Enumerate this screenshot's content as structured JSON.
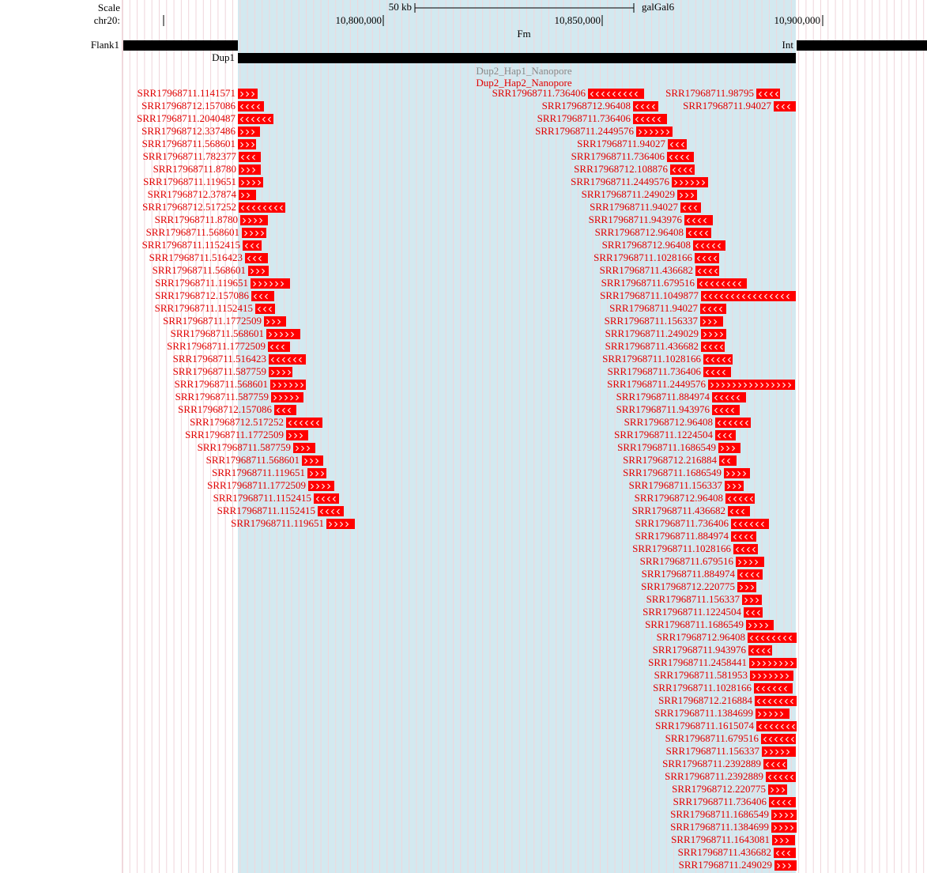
{
  "header": {
    "scale_label": "Scale",
    "chrom_label": "chr20:",
    "scale_bar": "50 kb",
    "assembly": "galGal6",
    "ticks": [
      "10,800,000",
      "10,850,000",
      "10,900,000"
    ]
  },
  "tracks": {
    "fm": "Fm",
    "flank1": "Flank1",
    "int": "Int",
    "dup1": "Dup1",
    "hap1": "Dup2_Hap1_Nanopore",
    "hap2": "Dup2_Hap2_Nanopore"
  },
  "reads": [
    "SRR17968711.1141571",
    "SRR17968712.157086",
    "SRR17968711.2040487",
    "SRR17968712.337486",
    "SRR17968711.568601",
    "SRR17968711.782377",
    "SRR17968711.8780",
    "SRR17968711.119651",
    "SRR17968712.37874",
    "SRR17968712.517252",
    "SRR17968711.8780",
    "SRR17968711.568601",
    "SRR17968711.1152415",
    "SRR17968711.516423",
    "SRR17968711.568601",
    "SRR17968711.119651",
    "SRR17968712.157086",
    "SRR17968711.1152415",
    "SRR17968711.1772509",
    "SRR17968711.568601",
    "SRR17968711.1772509",
    "SRR17968711.516423",
    "SRR17968711.587759",
    "SRR17968711.568601",
    "SRR17968711.587759",
    "SRR17968712.157086",
    "SRR17968712.517252",
    "SRR17968711.1772509",
    "SRR17968711.587759",
    "SRR17968711.568601",
    "SRR17968711.119651",
    "SRR17968711.1772509",
    "SRR17968711.1152415",
    "SRR17968711.1152415",
    "SRR17968711.119651",
    "SRR17968711.736406",
    "SRR17968711.98795",
    "SRR17968712.96408",
    "SRR17968711.94027",
    "SRR17968711.736406",
    "SRR17968711.2449576",
    "SRR17968711.94027",
    "SRR17968711.736406",
    "SRR17968712.108876",
    "SRR17968711.2449576",
    "SRR17968711.249029",
    "SRR17968711.94027",
    "SRR17968711.943976",
    "SRR17968712.96408",
    "SRR17968712.96408",
    "SRR17968711.1028166",
    "SRR17968711.436682",
    "SRR17968711.679516",
    "SRR17968711.1049877",
    "SRR17968711.94027",
    "SRR17968711.156337",
    "SRR17968711.249029",
    "SRR17968711.436682",
    "SRR17968711.1028166",
    "SRR17968711.736406",
    "SRR17968711.2449576",
    "SRR17968711.884974",
    "SRR17968711.943976",
    "SRR17968712.96408",
    "SRR17968711.1224504",
    "SRR17968711.1686549",
    "SRR17968712.216884",
    "SRR17968711.1686549",
    "SRR17968711.156337",
    "SRR17968712.96408",
    "SRR17968711.436682",
    "SRR17968711.736406",
    "SRR17968711.884974",
    "SRR17968711.1028166",
    "SRR17968711.679516",
    "SRR17968711.884974",
    "SRR17968712.220775",
    "SRR17968711.156337",
    "SRR17968711.1224504",
    "SRR17968711.1686549",
    "SRR17968712.96408",
    "SRR17968711.943976",
    "SRR17968711.2458441",
    "SRR17968711.581953",
    "SRR17968711.1028166",
    "SRR17968712.216884",
    "SRR17968711.1384699",
    "SRR17968711.1615074",
    "SRR17968711.679516",
    "SRR17968711.156337",
    "SRR17968711.2392889",
    "SRR17968711.2392889",
    "SRR17968712.220775",
    "SRR17968711.736406",
    "SRR17968711.1686549",
    "SRR17968711.1384699",
    "SRR17968711.1643081",
    "SRR17968711.436682",
    "SRR17968711.249029"
  ]
}
